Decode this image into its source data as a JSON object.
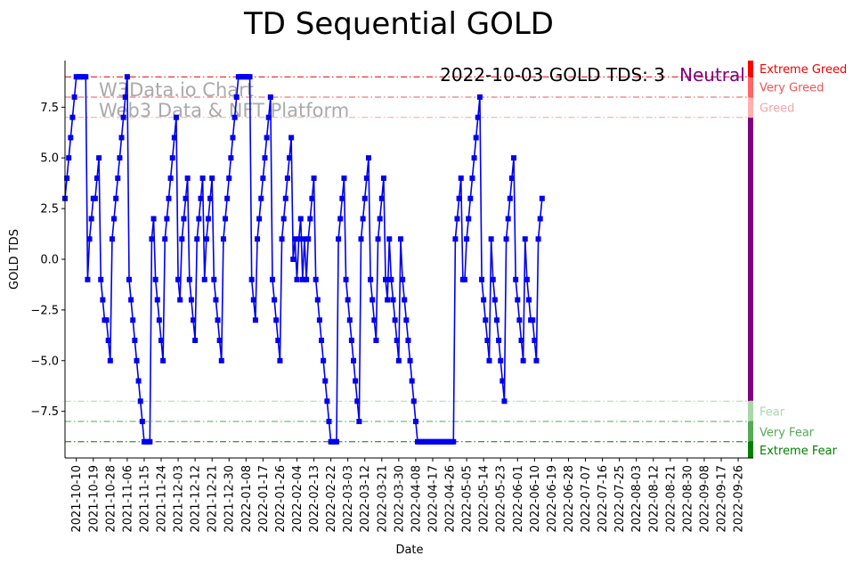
{
  "chart_data": {
    "type": "line",
    "title": "TD Sequential GOLD",
    "xlabel": "Date",
    "ylabel": "GOLD TDS",
    "ylim": [
      -9.8,
      9.8
    ],
    "yticks": [
      -7.5,
      -5.0,
      -2.5,
      0.0,
      2.5,
      5.0,
      7.5
    ],
    "ytick_labels": [
      "−7.5",
      "−5.0",
      "−2.5",
      "0.0",
      "2.5",
      "5.0",
      "7.5"
    ],
    "x_start": "2021-10-04",
    "x_end": "2022-10-04",
    "xtick_labels": [
      "2021-10-10",
      "2021-10-19",
      "2021-10-28",
      "2021-11-06",
      "2021-11-15",
      "2021-11-24",
      "2021-12-03",
      "2021-12-12",
      "2021-12-21",
      "2021-12-30",
      "2022-01-08",
      "2022-01-17",
      "2022-01-26",
      "2022-02-04",
      "2022-02-13",
      "2022-02-22",
      "2022-03-03",
      "2022-03-12",
      "2022-03-21",
      "2022-03-30",
      "2022-04-08",
      "2022-04-17",
      "2022-04-26",
      "2022-05-05",
      "2022-05-14",
      "2022-05-23",
      "2022-06-01",
      "2022-06-10",
      "2022-06-19",
      "2022-06-28",
      "2022-07-07",
      "2022-07-16",
      "2022-07-25",
      "2022-08-03",
      "2022-08-12",
      "2022-08-21",
      "2022-08-30",
      "2022-09-08",
      "2022-09-17",
      "2022-09-26"
    ],
    "grid": false,
    "series": [
      {
        "color": "#0000ee",
        "marker": "square",
        "start_date": "2021-10-04",
        "values": [
          3,
          4,
          5,
          6,
          7,
          8,
          9,
          9,
          9,
          9,
          9,
          9,
          -1,
          1,
          2,
          3,
          3,
          4,
          5,
          -1,
          -2,
          -3,
          -3,
          -4,
          -5,
          1,
          2,
          3,
          4,
          5,
          6,
          7,
          8,
          9,
          -1,
          -2,
          -3,
          -4,
          -5,
          -6,
          -7,
          -8,
          -9,
          -9,
          -9,
          -9,
          1,
          2,
          -1,
          -2,
          -3,
          -4,
          -5,
          1,
          2,
          3,
          4,
          5,
          6,
          7,
          -1,
          -2,
          1,
          2,
          3,
          4,
          -1,
          -2,
          -3,
          -4,
          1,
          2,
          3,
          4,
          -1,
          1,
          2,
          3,
          4,
          -1,
          -2,
          -3,
          -4,
          -5,
          1,
          2,
          3,
          4,
          5,
          6,
          7,
          8,
          9,
          9,
          9,
          9,
          9,
          9,
          9,
          -1,
          -2,
          -3,
          1,
          2,
          3,
          4,
          5,
          6,
          7,
          8,
          -1,
          -2,
          -3,
          -4,
          -5,
          1,
          2,
          3,
          4,
          5,
          6,
          0,
          1,
          -1,
          1,
          2,
          -1,
          1,
          -1,
          1,
          2,
          3,
          4,
          -1,
          -2,
          -3,
          -4,
          -5,
          -6,
          -7,
          -8,
          -9,
          -9,
          -9,
          -9,
          1,
          2,
          3,
          4,
          -1,
          -2,
          -3,
          -4,
          -5,
          -6,
          -7,
          -8,
          1,
          2,
          3,
          4,
          5,
          -1,
          -2,
          -3,
          -4,
          1,
          2,
          3,
          4,
          -1,
          -2,
          1,
          -1,
          -2,
          -3,
          -4,
          -5,
          1,
          -1,
          -2,
          -3,
          -4,
          -5,
          -6,
          -7,
          -8,
          -9,
          -9,
          -9,
          -9,
          -9,
          -9,
          -9,
          -9,
          -9,
          -9,
          -9,
          -9,
          -9,
          -9,
          -9,
          -9,
          -9,
          -9,
          -9,
          -9,
          1,
          2,
          3,
          4,
          -1,
          -1,
          1,
          2,
          3,
          4,
          5,
          6,
          7,
          8,
          -1,
          -2,
          -3,
          -4,
          -5,
          1,
          -1,
          -2,
          -3,
          -4,
          -5,
          -6,
          -7,
          1,
          2,
          3,
          4,
          5,
          -1,
          -2,
          -3,
          -4,
          -5,
          1,
          -1,
          -2,
          -3,
          -3,
          -4,
          -5,
          1,
          2,
          3
        ]
      }
    ],
    "reference_lines": [
      {
        "value": 9,
        "color": "#dd0000"
      },
      {
        "value": 8,
        "color": "#ee5555"
      },
      {
        "value": 7,
        "color": "#f4a5a5"
      },
      {
        "value": -7,
        "color": "#a8d8a8"
      },
      {
        "value": -8,
        "color": "#55aa55"
      },
      {
        "value": -9,
        "color": "#007700"
      }
    ],
    "sentiment_bands": [
      {
        "label": "Extreme Greed",
        "from": 9,
        "to": 9.8,
        "color": "#ff0000",
        "text_color": "#ee0000"
      },
      {
        "label": "Very Greed",
        "from": 8,
        "to": 9,
        "color": "#ff6666",
        "text_color": "#ee5555"
      },
      {
        "label": "Greed",
        "from": 7,
        "to": 8,
        "color": "#ffb0b0",
        "text_color": "#f4a5a5"
      },
      {
        "label": "",
        "from": -7,
        "to": 7,
        "color": "#800080",
        "text_color": "#800080"
      },
      {
        "label": "Fear",
        "from": -8,
        "to": -7,
        "color": "#a8d8a8",
        "text_color": "#a8d8a8"
      },
      {
        "label": "Very Fear",
        "from": -9,
        "to": -8,
        "color": "#55aa55",
        "text_color": "#55aa55"
      },
      {
        "label": "Extreme Fear",
        "from": -9.8,
        "to": -9,
        "color": "#008000",
        "text_color": "#008000"
      }
    ],
    "annotation": {
      "date_text": "2022-10-03 GOLD TDS: 3",
      "status": "Neutral",
      "status_color": "#800080"
    },
    "watermark": [
      "W3Data.io Chart",
      "Web3 Data & NFT Platform"
    ]
  }
}
